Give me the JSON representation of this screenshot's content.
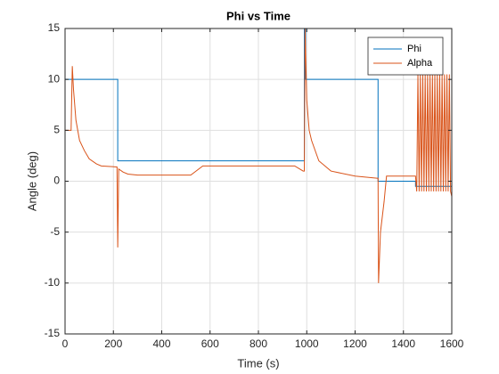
{
  "chart_data": {
    "type": "line",
    "title": "Phi vs Time",
    "xlabel": "Time (s)",
    "ylabel": "Angle (deg)",
    "xlim": [
      0,
      1600
    ],
    "ylim": [
      -15,
      15
    ],
    "xticks": [
      0,
      200,
      400,
      600,
      800,
      1000,
      1200,
      1400,
      1600
    ],
    "yticks": [
      -15,
      -10,
      -5,
      0,
      5,
      10,
      15
    ],
    "grid": true,
    "legend": "northeast",
    "series": [
      {
        "name": "Phi",
        "color": "#0072BD",
        "x": [
          0,
          0,
          218,
          218,
          990,
          990,
          995,
          995,
          1295,
          1295,
          1450,
          1450,
          1600
        ],
        "values": [
          0,
          10,
          10,
          2,
          2,
          15,
          15,
          10,
          10,
          0,
          0,
          -0.5,
          -0.5
        ]
      },
      {
        "name": "Alpha",
        "color": "#D95319",
        "x": [
          0,
          25,
          30,
          35,
          45,
          60,
          80,
          100,
          130,
          150,
          215,
          218,
          222,
          240,
          260,
          300,
          520,
          570,
          950,
          985,
          990,
          993,
          1000,
          1010,
          1020,
          1050,
          1100,
          1200,
          1290,
          1295,
          1297,
          1305,
          1320,
          1330,
          1450,
          1455,
          1460,
          1465,
          1470,
          1475,
          1480,
          1485,
          1490,
          1495,
          1500,
          1505,
          1510,
          1515,
          1520,
          1525,
          1530,
          1535,
          1540,
          1545,
          1550,
          1555,
          1560,
          1565,
          1570,
          1575,
          1580,
          1585,
          1590,
          1595,
          1600
        ],
        "values": [
          5,
          5,
          11.3,
          9,
          6,
          4,
          3,
          2.2,
          1.7,
          1.5,
          1.4,
          -6.5,
          1.2,
          0.9,
          0.7,
          0.6,
          0.6,
          1.5,
          1.5,
          1,
          1,
          15,
          8,
          5,
          4,
          2,
          1,
          0.5,
          0.3,
          0.3,
          -10,
          -5,
          -2,
          0.5,
          0.5,
          -1,
          10.5,
          -1,
          10.5,
          -1,
          10.5,
          -1,
          10.5,
          -1,
          10.5,
          -1,
          10.5,
          -1,
          10.5,
          -1,
          10.5,
          -1,
          10.5,
          -1,
          10.5,
          -1,
          10.5,
          -1,
          10.5,
          -1,
          10.5,
          -1,
          10.5,
          -1,
          -1.5
        ]
      }
    ]
  }
}
